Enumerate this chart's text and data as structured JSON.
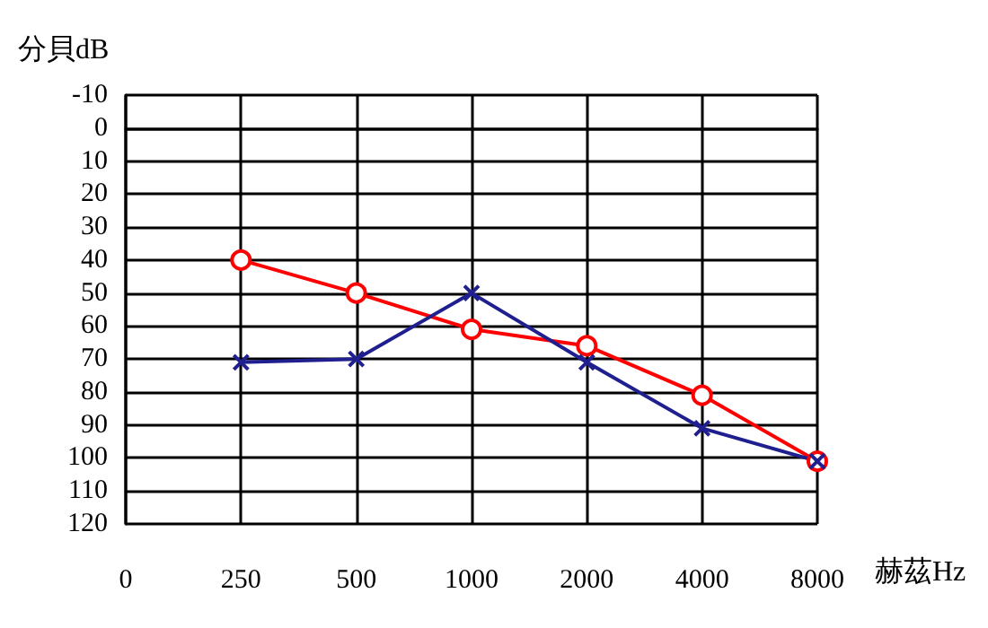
{
  "chart_data": {
    "type": "line",
    "ylabel": "分貝dB",
    "xlabel": "赫茲Hz",
    "categories": [
      "0",
      "250",
      "500",
      "1000",
      "2000",
      "4000",
      "8000"
    ],
    "series": [
      {
        "color": "#ff0000",
        "marker": "circle",
        "values": [
          null,
          40,
          50,
          61,
          66,
          81,
          101
        ]
      },
      {
        "color": "#1f1f8f",
        "marker": "cross",
        "values": [
          null,
          71,
          70,
          50,
          71,
          91,
          101
        ]
      }
    ],
    "ylim": [
      120,
      -10
    ],
    "yticks": [
      -10,
      0,
      10,
      20,
      30,
      40,
      50,
      60,
      70,
      80,
      90,
      100,
      110,
      120
    ],
    "grid": true,
    "line_style": "solid"
  }
}
